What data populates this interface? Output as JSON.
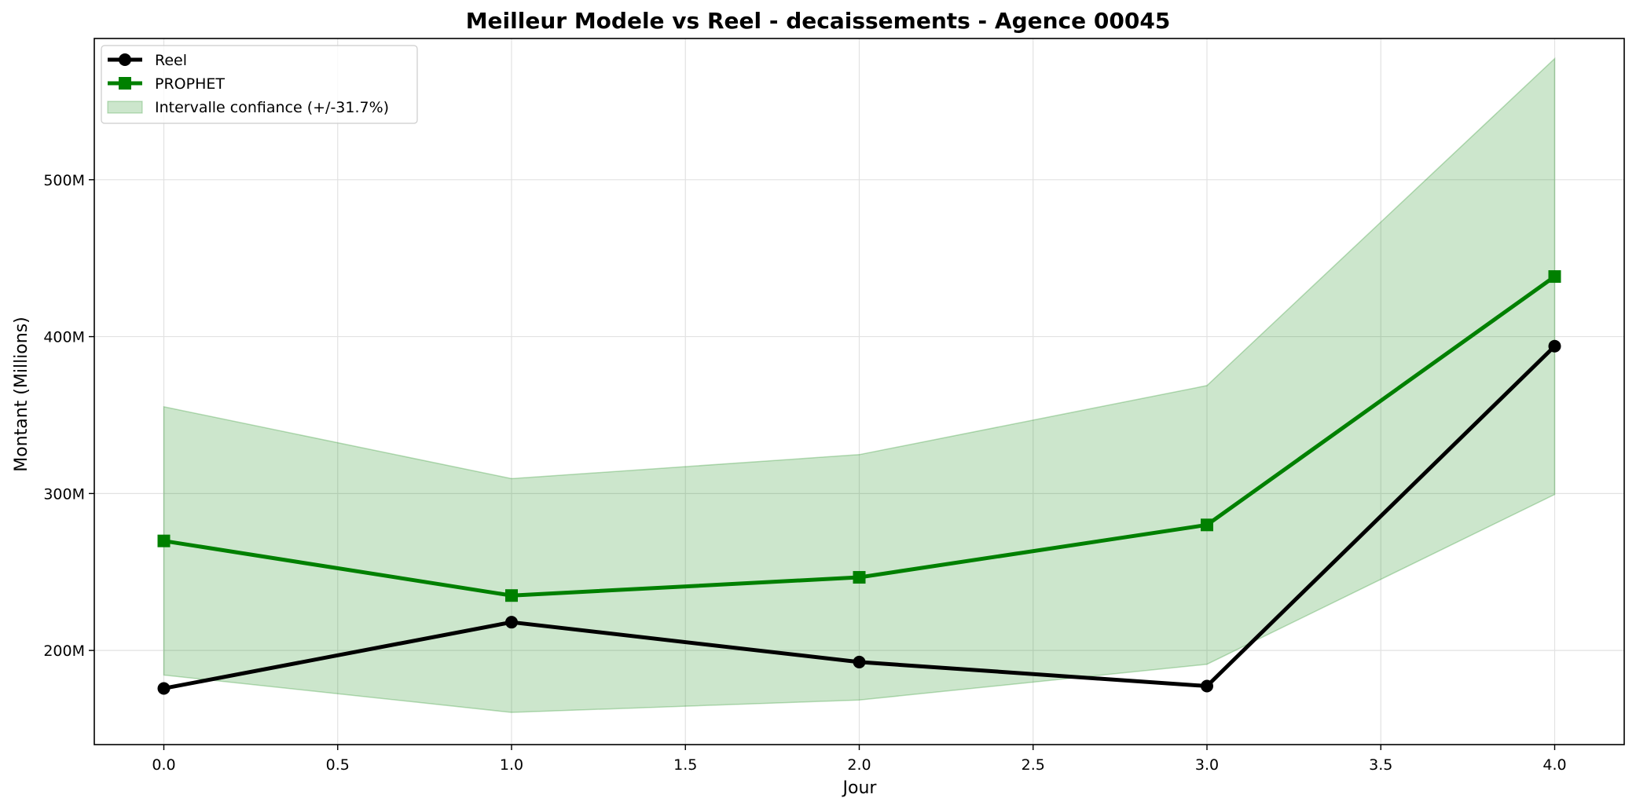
{
  "chart_data": {
    "type": "line",
    "title": "Meilleur Modele vs Reel - decaissements - Agence 00045",
    "xlabel": "Jour",
    "ylabel": "Montant (Millions)",
    "x": [
      0,
      1,
      2,
      3,
      4
    ],
    "xlim": [
      -0.2,
      4.2
    ],
    "ylim": [
      140,
      590
    ],
    "xticks": [
      0.0,
      0.5,
      1.0,
      1.5,
      2.0,
      2.5,
      3.0,
      3.5,
      4.0
    ],
    "xtick_labels": [
      "0.0",
      "0.5",
      "1.0",
      "1.5",
      "2.0",
      "2.5",
      "3.0",
      "3.5",
      "4.0"
    ],
    "yticks": [
      200,
      300,
      400,
      500
    ],
    "ytick_labels": [
      "200M",
      "300M",
      "400M",
      "500M"
    ],
    "grid": true,
    "legend_position": "top-left",
    "series": [
      {
        "name": "Reel",
        "values": [
          175.8,
          218,
          192.6,
          177.3,
          393.9
        ],
        "color": "#000000",
        "marker": "circle"
      },
      {
        "name": "PROPHET",
        "values": [
          269.8,
          235,
          246.6,
          280,
          438.3
        ],
        "color": "#008000",
        "marker": "square"
      }
    ],
    "band": {
      "name": "Intervalle confiance (+/-31.7%)",
      "lower": [
        184.3,
        160.5,
        168.4,
        191.2,
        299.4
      ],
      "upper": [
        355.3,
        309.5,
        324.8,
        368.8,
        577.2
      ],
      "color": "#008000",
      "opacity": 0.2
    }
  }
}
